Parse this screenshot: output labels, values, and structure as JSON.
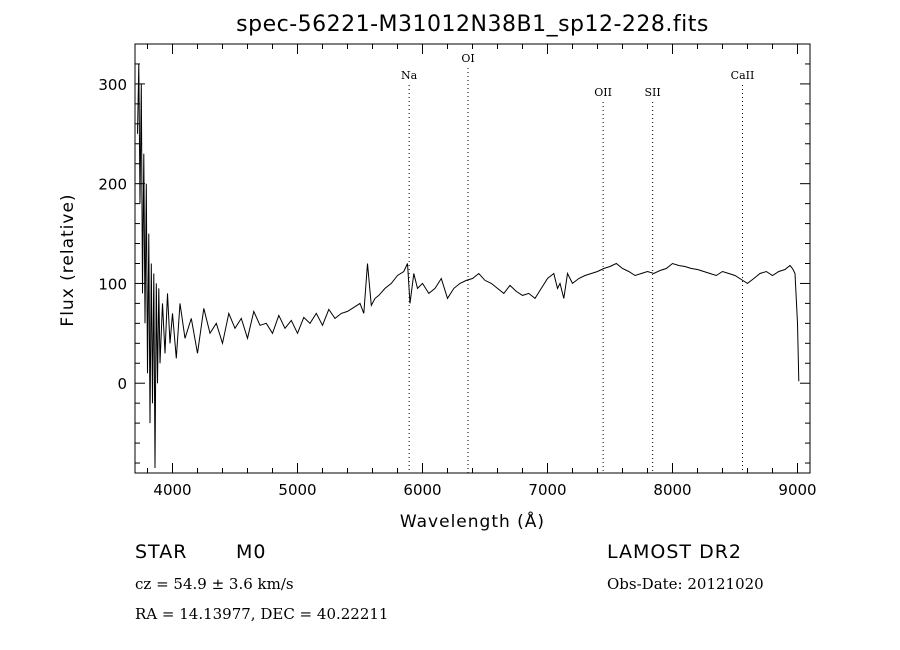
{
  "chart_data": {
    "type": "line",
    "title": "spec-56221-M31012N38B1_sp12-228.fits",
    "xlabel": "Wavelength (Å)",
    "ylabel": "Flux (relative)",
    "xlim": [
      3700,
      9100
    ],
    "ylim": [
      -90,
      340
    ],
    "xticks": [
      4000,
      5000,
      6000,
      7000,
      8000,
      9000
    ],
    "yticks": [
      0,
      100,
      200,
      300
    ],
    "grid": false,
    "line_color": "#000000",
    "lines": [
      {
        "label": "Na",
        "x": 5893
      },
      {
        "label": "OI",
        "x": 6364
      },
      {
        "label": "OII",
        "x": 7445
      },
      {
        "label": "SII",
        "x": 7841
      },
      {
        "label": "CaII",
        "x": 8560
      }
    ],
    "series": [
      {
        "x": [
          3720,
          3730,
          3740,
          3750,
          3760,
          3770,
          3780,
          3790,
          3800,
          3810,
          3820,
          3830,
          3840,
          3850,
          3860,
          3870,
          3880,
          3890,
          3900,
          3920,
          3940,
          3960,
          3980,
          4000,
          4030,
          4060,
          4100,
          4150,
          4200,
          4250,
          4300,
          4350,
          4400,
          4450,
          4500,
          4550,
          4600,
          4650,
          4700,
          4750,
          4800,
          4850,
          4900,
          4950,
          5000,
          5050,
          5100,
          5150,
          5200,
          5250,
          5300,
          5350,
          5400,
          5450,
          5500,
          5530,
          5560,
          5590,
          5620,
          5650,
          5700,
          5750,
          5800,
          5850,
          5880,
          5900,
          5930,
          5960,
          6000,
          6050,
          6100,
          6150,
          6200,
          6250,
          6300,
          6350,
          6400,
          6450,
          6500,
          6550,
          6600,
          6650,
          6700,
          6750,
          6800,
          6850,
          6900,
          6950,
          7000,
          7050,
          7080,
          7100,
          7130,
          7160,
          7200,
          7250,
          7300,
          7350,
          7400,
          7450,
          7500,
          7550,
          7600,
          7650,
          7700,
          7750,
          7800,
          7850,
          7900,
          7950,
          8000,
          8050,
          8100,
          8150,
          8200,
          8250,
          8300,
          8350,
          8400,
          8450,
          8500,
          8550,
          8600,
          8650,
          8700,
          8750,
          8800,
          8850,
          8900,
          8940,
          8960,
          8980,
          9000,
          9010
        ],
        "values": [
          250,
          320,
          180,
          300,
          90,
          230,
          60,
          200,
          10,
          150,
          -40,
          120,
          -20,
          110,
          -85,
          100,
          0,
          95,
          20,
          80,
          30,
          90,
          40,
          70,
          25,
          80,
          45,
          65,
          30,
          75,
          50,
          60,
          40,
          70,
          55,
          65,
          45,
          72,
          58,
          60,
          50,
          68,
          55,
          63,
          50,
          66,
          60,
          70,
          58,
          74,
          65,
          70,
          72,
          76,
          80,
          70,
          120,
          78,
          85,
          88,
          95,
          100,
          108,
          112,
          120,
          80,
          110,
          95,
          100,
          90,
          95,
          105,
          85,
          95,
          100,
          103,
          105,
          110,
          103,
          100,
          95,
          90,
          98,
          92,
          88,
          90,
          85,
          95,
          105,
          110,
          95,
          100,
          85,
          110,
          100,
          105,
          108,
          110,
          112,
          115,
          117,
          120,
          115,
          112,
          108,
          110,
          112,
          110,
          113,
          115,
          120,
          118,
          117,
          115,
          114,
          112,
          110,
          108,
          112,
          110,
          108,
          104,
          100,
          105,
          110,
          112,
          108,
          112,
          114,
          118,
          115,
          110,
          60,
          2
        ]
      }
    ]
  },
  "info": {
    "class": "STAR",
    "subclass": "M0",
    "survey": "LAMOST DR2",
    "cz": "cz = 54.9 ± 3.6 km/s",
    "obs_date": "Obs-Date: 20121020",
    "coords": "RA =  14.13977, DEC =  40.22211"
  }
}
